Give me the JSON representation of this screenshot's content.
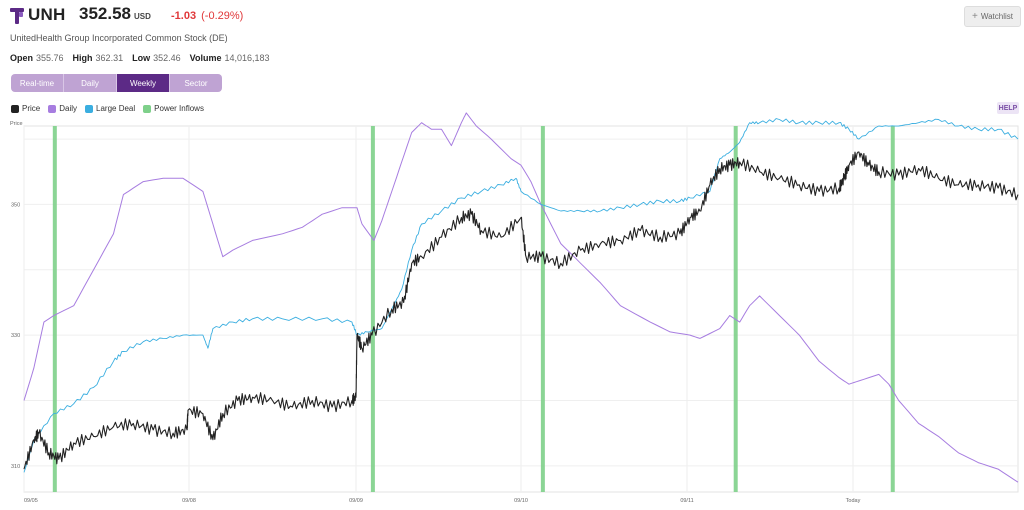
{
  "header": {
    "ticker": "UNH",
    "price": "352.58",
    "currency": "USD",
    "change": "-1.03",
    "change_pct": "(-0.29%)",
    "company": "UnitedHealth Group Incorporated Common Stock (DE)",
    "watchlist_label": "Watchlist",
    "stats": [
      {
        "label": "Open",
        "value": "355.76"
      },
      {
        "label": "High",
        "value": "362.31"
      },
      {
        "label": "Low",
        "value": "352.46"
      },
      {
        "label": "Volume",
        "value": "14,016,183"
      }
    ]
  },
  "tabs": [
    "Real-time",
    "Daily",
    "Weekly",
    "Sector"
  ],
  "active_tab": "Weekly",
  "help_label": "HELP",
  "colors": {
    "price": "#222222",
    "daily": "#a77de0",
    "large_deal": "#3aaee0",
    "power_inflows": "#7ed08a",
    "accent": "#5c2a86",
    "down": "#e0383a"
  },
  "chart_data": {
    "type": "line",
    "ylabel": "Price",
    "ylim": [
      306,
      362
    ],
    "yticks": [
      310,
      330,
      350
    ],
    "xticks": [
      "09/05",
      "09/08",
      "09/09",
      "09/10",
      "09/11",
      "Today"
    ],
    "legend": [
      "Price",
      "Daily",
      "Large Deal",
      "Power Inflows"
    ],
    "legend_position": "top-left",
    "grid": true,
    "power_inflows_at": [
      0.031,
      0.351,
      0.522,
      0.716,
      0.874
    ],
    "series": [
      {
        "name": "Price",
        "points": [
          [
            0.0,
            309.5
          ],
          [
            0.01,
            314
          ],
          [
            0.015,
            315
          ],
          [
            0.025,
            312
          ],
          [
            0.035,
            311
          ],
          [
            0.05,
            313.5
          ],
          [
            0.07,
            314.5
          ],
          [
            0.09,
            316
          ],
          [
            0.11,
            316.5
          ],
          [
            0.13,
            315.5
          ],
          [
            0.15,
            315
          ],
          [
            0.164,
            315.5
          ],
          [
            0.165,
            318.5
          ],
          [
            0.18,
            318
          ],
          [
            0.19,
            314
          ],
          [
            0.2,
            318
          ],
          [
            0.215,
            320
          ],
          [
            0.23,
            320.5
          ],
          [
            0.25,
            320
          ],
          [
            0.27,
            319
          ],
          [
            0.29,
            320
          ],
          [
            0.31,
            319
          ],
          [
            0.33,
            320
          ],
          [
            0.334,
            320.5
          ],
          [
            0.335,
            330
          ],
          [
            0.34,
            328
          ],
          [
            0.35,
            330
          ],
          [
            0.37,
            334
          ],
          [
            0.382,
            335
          ],
          [
            0.39,
            341
          ],
          [
            0.4,
            342
          ],
          [
            0.42,
            345
          ],
          [
            0.44,
            348
          ],
          [
            0.45,
            348.5
          ],
          [
            0.46,
            346
          ],
          [
            0.48,
            345
          ],
          [
            0.5,
            348
          ],
          [
            0.505,
            342
          ],
          [
            0.52,
            342
          ],
          [
            0.54,
            341
          ],
          [
            0.56,
            343
          ],
          [
            0.58,
            344
          ],
          [
            0.6,
            344.5
          ],
          [
            0.62,
            346
          ],
          [
            0.64,
            345
          ],
          [
            0.66,
            345.5
          ],
          [
            0.67,
            348
          ],
          [
            0.68,
            349
          ],
          [
            0.69,
            353
          ],
          [
            0.7,
            355.5
          ],
          [
            0.71,
            356
          ],
          [
            0.72,
            356.5
          ],
          [
            0.74,
            355
          ],
          [
            0.76,
            354
          ],
          [
            0.78,
            353
          ],
          [
            0.8,
            352
          ],
          [
            0.82,
            352.5
          ],
          [
            0.825,
            354
          ],
          [
            0.83,
            356
          ],
          [
            0.84,
            358
          ],
          [
            0.85,
            356
          ],
          [
            0.86,
            355
          ],
          [
            0.88,
            354.5
          ],
          [
            0.9,
            355.5
          ],
          [
            0.92,
            354
          ],
          [
            0.94,
            353
          ],
          [
            0.96,
            353
          ],
          [
            0.98,
            352.5
          ],
          [
            1.0,
            351.5
          ]
        ]
      },
      {
        "name": "Daily",
        "points": [
          [
            0.0,
            320
          ],
          [
            0.01,
            325
          ],
          [
            0.02,
            332
          ],
          [
            0.03,
            333
          ],
          [
            0.05,
            334.5
          ],
          [
            0.07,
            340
          ],
          [
            0.09,
            345.5
          ],
          [
            0.1,
            351.5
          ],
          [
            0.12,
            353.5
          ],
          [
            0.14,
            354
          ],
          [
            0.16,
            354
          ],
          [
            0.18,
            352
          ],
          [
            0.19,
            347
          ],
          [
            0.2,
            342
          ],
          [
            0.21,
            343
          ],
          [
            0.23,
            344.5
          ],
          [
            0.26,
            345.5
          ],
          [
            0.28,
            346.5
          ],
          [
            0.3,
            348.5
          ],
          [
            0.32,
            349.5
          ],
          [
            0.335,
            349.5
          ],
          [
            0.34,
            347
          ],
          [
            0.352,
            344.5
          ],
          [
            0.36,
            347.5
          ],
          [
            0.37,
            352
          ],
          [
            0.38,
            356.5
          ],
          [
            0.39,
            361
          ],
          [
            0.4,
            362.5
          ],
          [
            0.41,
            361.5
          ],
          [
            0.42,
            361.5
          ],
          [
            0.43,
            359
          ],
          [
            0.44,
            362.5
          ],
          [
            0.445,
            364
          ],
          [
            0.455,
            362
          ],
          [
            0.47,
            360
          ],
          [
            0.49,
            357
          ],
          [
            0.5,
            356
          ],
          [
            0.51,
            353.5
          ],
          [
            0.52,
            350
          ],
          [
            0.54,
            344
          ],
          [
            0.56,
            341
          ],
          [
            0.58,
            338
          ],
          [
            0.6,
            334.5
          ],
          [
            0.63,
            332
          ],
          [
            0.65,
            330.5
          ],
          [
            0.67,
            330
          ],
          [
            0.68,
            329.5
          ],
          [
            0.7,
            331
          ],
          [
            0.71,
            333
          ],
          [
            0.72,
            332
          ],
          [
            0.73,
            334.5
          ],
          [
            0.74,
            336
          ],
          [
            0.76,
            333
          ],
          [
            0.78,
            330
          ],
          [
            0.8,
            326
          ],
          [
            0.82,
            323.5
          ],
          [
            0.83,
            322.5
          ],
          [
            0.84,
            323
          ],
          [
            0.86,
            324
          ],
          [
            0.87,
            322.5
          ],
          [
            0.88,
            320
          ],
          [
            0.9,
            316.5
          ],
          [
            0.92,
            314.5
          ],
          [
            0.94,
            312
          ],
          [
            0.96,
            310.5
          ],
          [
            0.98,
            309.5
          ],
          [
            1.0,
            307.5
          ]
        ]
      },
      {
        "name": "Large Deal",
        "points": [
          [
            0.0,
            309
          ],
          [
            0.01,
            314
          ],
          [
            0.03,
            318
          ],
          [
            0.05,
            319.5
          ],
          [
            0.07,
            322
          ],
          [
            0.09,
            326
          ],
          [
            0.1,
            327.5
          ],
          [
            0.12,
            329
          ],
          [
            0.14,
            329.5
          ],
          [
            0.16,
            330
          ],
          [
            0.18,
            330
          ],
          [
            0.185,
            328
          ],
          [
            0.19,
            331
          ],
          [
            0.21,
            332
          ],
          [
            0.23,
            332.5
          ],
          [
            0.26,
            332.5
          ],
          [
            0.3,
            332.5
          ],
          [
            0.33,
            332
          ],
          [
            0.335,
            330
          ],
          [
            0.345,
            330.5
          ],
          [
            0.36,
            331
          ],
          [
            0.37,
            334
          ],
          [
            0.38,
            337
          ],
          [
            0.39,
            343
          ],
          [
            0.4,
            347
          ],
          [
            0.42,
            349
          ],
          [
            0.44,
            351
          ],
          [
            0.46,
            352
          ],
          [
            0.48,
            353
          ],
          [
            0.495,
            354
          ],
          [
            0.5,
            352
          ],
          [
            0.52,
            350
          ],
          [
            0.54,
            349
          ],
          [
            0.56,
            349
          ],
          [
            0.58,
            349
          ],
          [
            0.6,
            349.5
          ],
          [
            0.62,
            350
          ],
          [
            0.64,
            350.5
          ],
          [
            0.66,
            350.5
          ],
          [
            0.67,
            351
          ],
          [
            0.69,
            352
          ],
          [
            0.7,
            357
          ],
          [
            0.71,
            358
          ],
          [
            0.72,
            359.5
          ],
          [
            0.73,
            362.5
          ],
          [
            0.74,
            362.5
          ],
          [
            0.76,
            363
          ],
          [
            0.78,
            362.5
          ],
          [
            0.8,
            362.5
          ],
          [
            0.82,
            362.5
          ],
          [
            0.83,
            361.5
          ],
          [
            0.84,
            360
          ],
          [
            0.86,
            362
          ],
          [
            0.88,
            362
          ],
          [
            0.9,
            362.5
          ],
          [
            0.92,
            363
          ],
          [
            0.94,
            362
          ],
          [
            0.96,
            361.5
          ],
          [
            0.98,
            361.5
          ],
          [
            1.0,
            360
          ]
        ]
      }
    ]
  }
}
